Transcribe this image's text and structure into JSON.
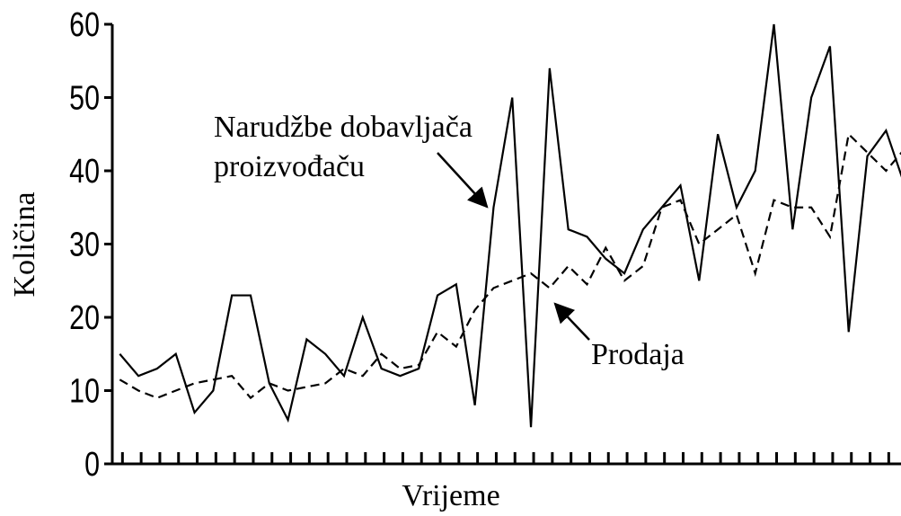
{
  "chart_data": {
    "type": "line",
    "xlabel": "Vrijeme",
    "ylabel": "Količina",
    "x": [
      0,
      1,
      2,
      3,
      4,
      5,
      6,
      7,
      8,
      9,
      10,
      11,
      12,
      13,
      14,
      15,
      16,
      17,
      18,
      19,
      20,
      21,
      22,
      23,
      24,
      25,
      26,
      27,
      28,
      29,
      30,
      31,
      32,
      33,
      34,
      35,
      36,
      37,
      38,
      39,
      40,
      41,
      42
    ],
    "series": [
      {
        "name": "Narudžbe dobavljača proizvođaču",
        "color": "#000000",
        "dash": false,
        "values": [
          15,
          12,
          13,
          15,
          7,
          10,
          23,
          23,
          11,
          6,
          17,
          15,
          12,
          20,
          13,
          12,
          13,
          23,
          24.5,
          8,
          35,
          50,
          5,
          54,
          32,
          31,
          28,
          26,
          32,
          35,
          38,
          25,
          45,
          35,
          40,
          60,
          32,
          50,
          57,
          18,
          42,
          45.5,
          38
        ]
      },
      {
        "name": "Prodaja",
        "color": "#000000",
        "dash": true,
        "values": [
          11.5,
          10,
          9,
          10,
          11,
          11.5,
          12,
          9,
          11,
          10,
          10.5,
          11,
          13,
          12,
          15,
          13,
          13.5,
          18,
          16,
          21,
          24,
          25,
          26,
          24,
          27,
          24.5,
          29.5,
          25,
          27,
          35,
          36,
          30,
          32,
          34,
          26,
          36,
          35,
          35,
          31,
          45,
          42.5,
          40,
          43
        ]
      }
    ],
    "annotations": [
      "Narudžbe dobavljača",
      "proizvođaču"
    ],
    "xlim": [
      -0.4,
      41.8
    ],
    "xticks": [
      0,
      1,
      2,
      3,
      4,
      5,
      6,
      7,
      8,
      9,
      10,
      11,
      12,
      13,
      14,
      15,
      16,
      17,
      18,
      19,
      20,
      21,
      22,
      23,
      24,
      25,
      26,
      27,
      28,
      29,
      30,
      31,
      32,
      33,
      34,
      35,
      36,
      37,
      38,
      39,
      40,
      41
    ],
    "ylim": [
      0,
      60
    ],
    "yticks": [
      0,
      10,
      20,
      30,
      40,
      50,
      60
    ],
    "grid": false
  }
}
